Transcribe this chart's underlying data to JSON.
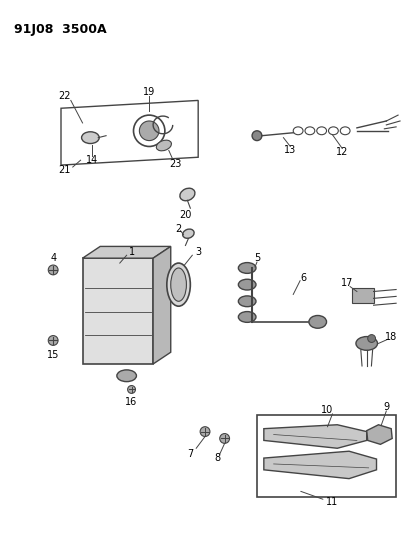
{
  "title": "91J08  3500A",
  "bg_color": "#ffffff",
  "line_color": "#444444",
  "text_color": "#000000",
  "figsize": [
    4.14,
    5.33
  ],
  "dpi": 100
}
